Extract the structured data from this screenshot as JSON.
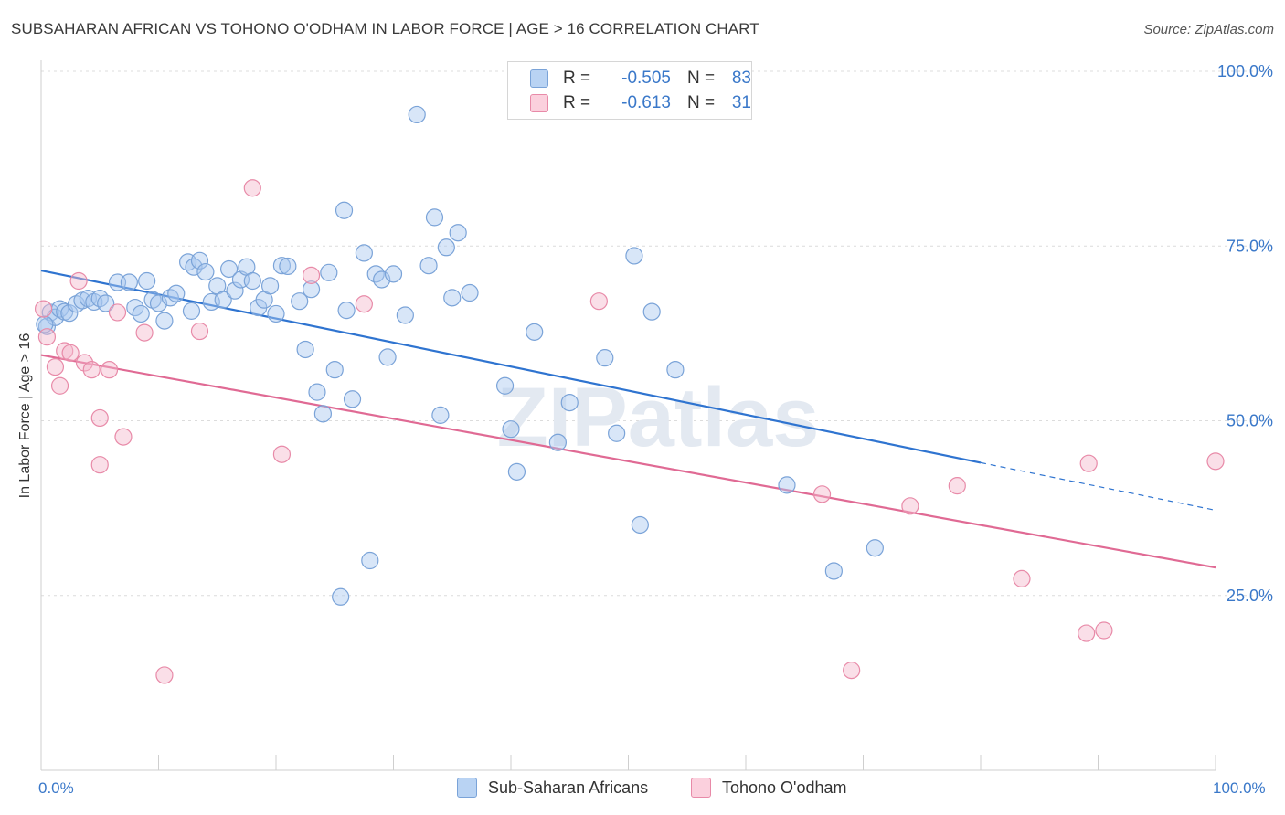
{
  "title": "SUBSAHARAN AFRICAN VS TOHONO O'ODHAM IN LABOR FORCE | AGE > 16 CORRELATION CHART",
  "source": "Source: ZipAtlas.com",
  "watermark": "ZIPatlas",
  "legend": {
    "rows": [
      {
        "r_label": "R =",
        "r_value": "-0.505",
        "n_label": "N =",
        "n_value": "83",
        "color": "#a9c8f0"
      },
      {
        "r_label": "R =",
        "r_value": "-0.613",
        "n_label": "N =",
        "n_value": "31",
        "color": "#f5b8cb"
      }
    ]
  },
  "chart_data": {
    "type": "scatter",
    "xlabel": "",
    "ylabel": "In Labor Force | Age > 16",
    "xlim": [
      0,
      100
    ],
    "ylim": [
      0,
      103
    ],
    "x_tick_labels": [
      "0.0%",
      "100.0%"
    ],
    "y_tick_labels": [
      "25.0%",
      "50.0%",
      "75.0%",
      "100.0%"
    ],
    "y_ticks": [
      25,
      50,
      75,
      100
    ],
    "grid": true,
    "series": [
      {
        "name": "Sub-Saharan Africans",
        "color": "#a9c8f0",
        "stroke": "#7aa3d8",
        "trend_color": "#2f74d0",
        "trend": {
          "x0": 0,
          "y0": 71.5,
          "x1": 80,
          "y1": 44.0,
          "dash_to": 100,
          "dash_y": 37.2
        },
        "points": [
          [
            0.5,
            63.5
          ],
          [
            0.8,
            65.5
          ],
          [
            1.2,
            64.8
          ],
          [
            1.6,
            66
          ],
          [
            2.0,
            65.6
          ],
          [
            2.4,
            65.4
          ],
          [
            3.0,
            66.7
          ],
          [
            3.5,
            67.2
          ],
          [
            4.0,
            67.5
          ],
          [
            4.5,
            67.0
          ],
          [
            5.0,
            67.5
          ],
          [
            5.5,
            66.8
          ],
          [
            6.5,
            69.8
          ],
          [
            7.5,
            69.8
          ],
          [
            8.0,
            66.2
          ],
          [
            8.5,
            65.3
          ],
          [
            9.0,
            70.0
          ],
          [
            9.5,
            67.3
          ],
          [
            10.0,
            66.8
          ],
          [
            10.5,
            64.3
          ],
          [
            11.0,
            67.6
          ],
          [
            11.5,
            68.2
          ],
          [
            12.5,
            72.7
          ],
          [
            12.8,
            65.7
          ],
          [
            13.0,
            72.0
          ],
          [
            13.5,
            72.9
          ],
          [
            14.0,
            71.3
          ],
          [
            14.5,
            67.0
          ],
          [
            15.0,
            69.3
          ],
          [
            15.5,
            67.3
          ],
          [
            16.0,
            71.7
          ],
          [
            16.5,
            68.6
          ],
          [
            17.0,
            70.2
          ],
          [
            17.5,
            72.0
          ],
          [
            18.0,
            70.0
          ],
          [
            18.5,
            66.2
          ],
          [
            19.0,
            67.3
          ],
          [
            19.5,
            69.3
          ],
          [
            20.0,
            65.3
          ],
          [
            20.5,
            72.2
          ],
          [
            21.0,
            72.1
          ],
          [
            22.0,
            67.1
          ],
          [
            22.5,
            60.2
          ],
          [
            23.0,
            68.8
          ],
          [
            23.5,
            54.1
          ],
          [
            24.0,
            51.0
          ],
          [
            24.5,
            71.2
          ],
          [
            25.0,
            57.3
          ],
          [
            25.5,
            24.8
          ],
          [
            25.8,
            80.1
          ],
          [
            26.0,
            65.8
          ],
          [
            26.5,
            53.1
          ],
          [
            27.5,
            74.0
          ],
          [
            28.0,
            30.0
          ],
          [
            28.5,
            71.0
          ],
          [
            29.0,
            70.2
          ],
          [
            29.5,
            59.1
          ],
          [
            30.0,
            71.0
          ],
          [
            31.0,
            65.1
          ],
          [
            32.0,
            93.8
          ],
          [
            33.0,
            72.2
          ],
          [
            33.5,
            79.1
          ],
          [
            34.0,
            50.8
          ],
          [
            34.5,
            74.8
          ],
          [
            35.0,
            67.6
          ],
          [
            35.5,
            76.9
          ],
          [
            36.5,
            68.3
          ],
          [
            39.5,
            55.0
          ],
          [
            40.0,
            48.8
          ],
          [
            40.5,
            42.7
          ],
          [
            42.0,
            62.7
          ],
          [
            44.0,
            46.9
          ],
          [
            45.0,
            52.6
          ],
          [
            48.0,
            59.0
          ],
          [
            49.0,
            48.2
          ],
          [
            50.5,
            73.6
          ],
          [
            51.0,
            35.1
          ],
          [
            52.0,
            65.6
          ],
          [
            54.0,
            57.3
          ],
          [
            63.5,
            40.8
          ],
          [
            67.5,
            28.5
          ],
          [
            71.0,
            31.8
          ],
          [
            0.3,
            63.8
          ]
        ]
      },
      {
        "name": "Tohono O'odham",
        "color": "#f5b8cb",
        "stroke": "#e88aa8",
        "trend_color": "#e06a94",
        "trend": {
          "x0": 0,
          "y0": 59.4,
          "x1": 100,
          "y1": 29.0
        },
        "points": [
          [
            0.2,
            66.0
          ],
          [
            0.5,
            62.0
          ],
          [
            1.2,
            57.7
          ],
          [
            1.6,
            55.0
          ],
          [
            2.0,
            60.0
          ],
          [
            2.5,
            59.7
          ],
          [
            3.2,
            70.0
          ],
          [
            3.7,
            58.3
          ],
          [
            4.3,
            57.3
          ],
          [
            5.0,
            50.4
          ],
          [
            5.0,
            43.7
          ],
          [
            5.8,
            57.3
          ],
          [
            6.5,
            65.5
          ],
          [
            7.0,
            47.7
          ],
          [
            8.8,
            62.6
          ],
          [
            10.5,
            13.6
          ],
          [
            13.5,
            62.8
          ],
          [
            18.0,
            83.3
          ],
          [
            20.5,
            45.2
          ],
          [
            23.0,
            70.8
          ],
          [
            27.5,
            66.7
          ],
          [
            47.5,
            67.1
          ],
          [
            66.5,
            39.5
          ],
          [
            69.0,
            14.3
          ],
          [
            74.0,
            37.8
          ],
          [
            78.0,
            40.7
          ],
          [
            83.5,
            27.4
          ],
          [
            89.0,
            19.6
          ],
          [
            89.2,
            43.9
          ],
          [
            90.5,
            20.0
          ],
          [
            100.0,
            44.2
          ]
        ]
      }
    ]
  }
}
